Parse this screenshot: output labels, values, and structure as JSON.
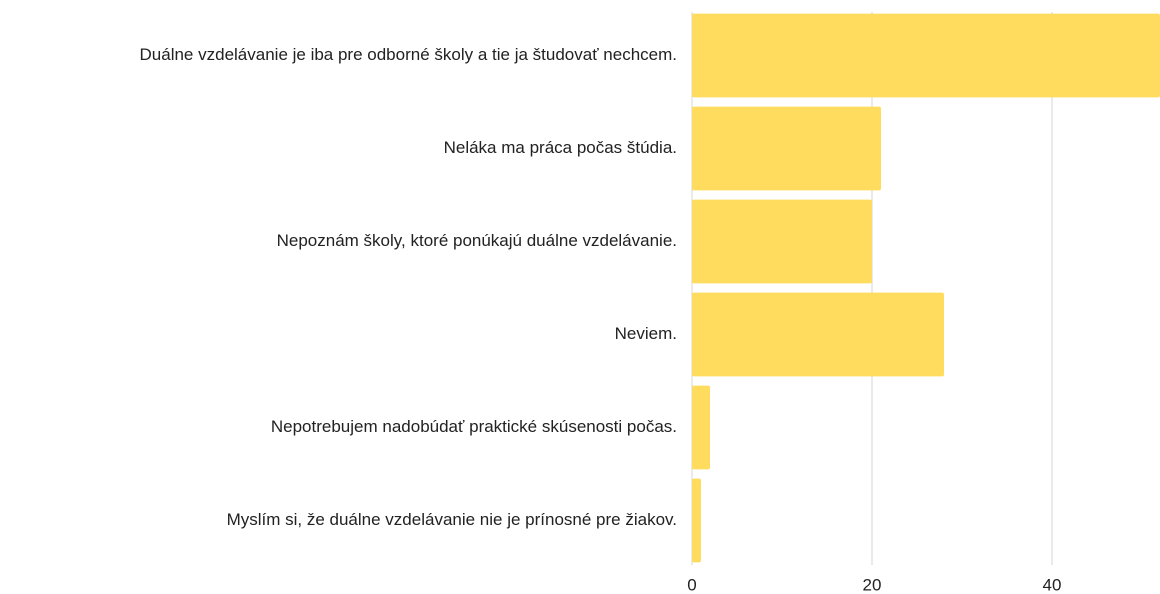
{
  "chart_data": {
    "type": "bar",
    "orientation": "horizontal",
    "categories": [
      "Duálne vzdelávanie je iba pre odborné školy a tie ja študovať nechcem.",
      "Neláka ma práca počas štúdia.",
      "Nepoznám školy, ktoré ponúkajú duálne vzdelávanie.",
      "Neviem.",
      "Nepotrebujem nadobúdať praktické skúsenosti počas.",
      "Myslím si, že duálne vzdelávanie nie je prínosné pre žiakov."
    ],
    "values": [
      52,
      21,
      20,
      28,
      2,
      1
    ],
    "color": "#ffdc5e",
    "xlim": [
      0,
      52
    ],
    "xticks": [
      0,
      20,
      40
    ],
    "grid": true
  }
}
